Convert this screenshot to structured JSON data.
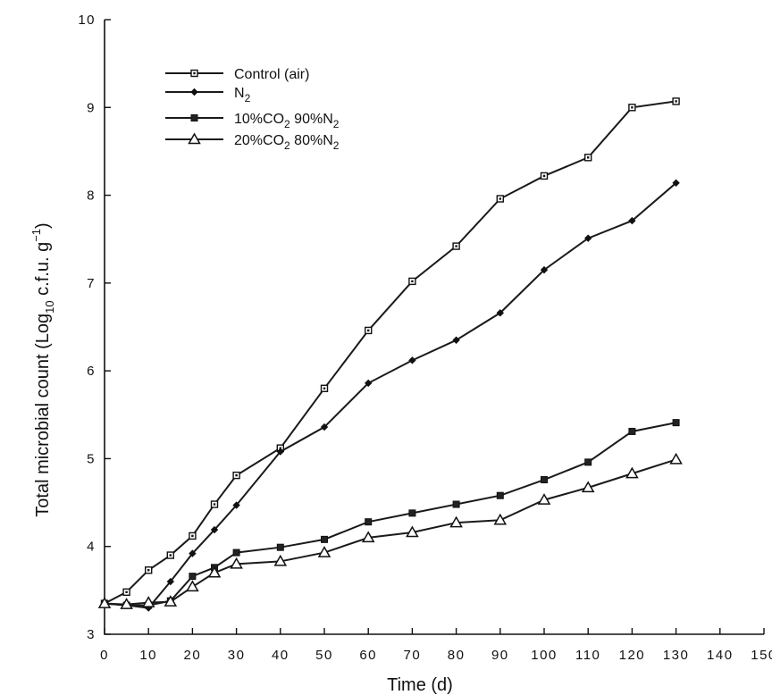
{
  "chart_data": {
    "type": "line",
    "title": "",
    "xlabel": "Time (d)",
    "ylabel_parts": {
      "main": "Total microbial count (Log",
      "sub": "10",
      "mid": " c.f.u. g",
      "sup": "−1",
      "end": ")"
    },
    "xlim": [
      0,
      150
    ],
    "ylim": [
      3,
      10
    ],
    "xticks": [
      0,
      10,
      20,
      30,
      40,
      50,
      60,
      70,
      80,
      90,
      100,
      110,
      120,
      130,
      140,
      150
    ],
    "yticks": [
      3,
      4,
      5,
      6,
      7,
      8,
      9,
      10
    ],
    "grid": false,
    "legend_position": "top-left",
    "series": [
      {
        "name": "Control (air)",
        "legend": {
          "text": "Control (air)"
        },
        "marker": "open-square",
        "x": [
          0,
          5,
          10,
          15,
          20,
          25,
          30,
          40,
          50,
          60,
          70,
          80,
          90,
          100,
          110,
          120,
          130
        ],
        "values": [
          3.35,
          3.48,
          3.73,
          3.9,
          4.12,
          4.48,
          4.81,
          5.12,
          5.8,
          6.46,
          7.02,
          7.42,
          7.96,
          8.22,
          8.43,
          9.0,
          9.07
        ]
      },
      {
        "name": "N2",
        "legend": {
          "text": "N",
          "sub": "2",
          "rest": ""
        },
        "marker": "filled-diamond",
        "x": [
          0,
          5,
          10,
          15,
          20,
          25,
          30,
          40,
          50,
          60,
          70,
          80,
          90,
          100,
          110,
          120,
          130
        ],
        "values": [
          3.35,
          3.33,
          3.3,
          3.6,
          3.92,
          4.19,
          4.47,
          5.08,
          5.36,
          5.86,
          6.12,
          6.35,
          6.66,
          7.15,
          7.51,
          7.71,
          8.14
        ]
      },
      {
        "name": "10%CO2 90%N2",
        "legend": {
          "text": "10%CO",
          "sub": "2",
          "mid": " 90%N",
          "sub2": "2"
        },
        "marker": "filled-square",
        "x": [
          0,
          5,
          10,
          15,
          20,
          25,
          30,
          40,
          50,
          60,
          70,
          80,
          90,
          100,
          110,
          120,
          130
        ],
        "values": [
          3.35,
          3.33,
          3.33,
          3.38,
          3.66,
          3.76,
          3.93,
          3.99,
          4.08,
          4.28,
          4.38,
          4.48,
          4.58,
          4.76,
          4.96,
          5.31,
          5.41
        ]
      },
      {
        "name": "20%CO2 80%N2",
        "legend": {
          "text": "20%CO",
          "sub": "2",
          "mid": " 80%N",
          "sub2": "2"
        },
        "marker": "open-triangle",
        "x": [
          0,
          5,
          10,
          15,
          20,
          25,
          30,
          40,
          50,
          60,
          70,
          80,
          90,
          100,
          110,
          120,
          130
        ],
        "values": [
          3.35,
          3.34,
          3.36,
          3.37,
          3.54,
          3.7,
          3.8,
          3.83,
          3.93,
          4.1,
          4.16,
          4.27,
          4.3,
          4.53,
          4.67,
          4.83,
          4.99
        ]
      }
    ]
  }
}
